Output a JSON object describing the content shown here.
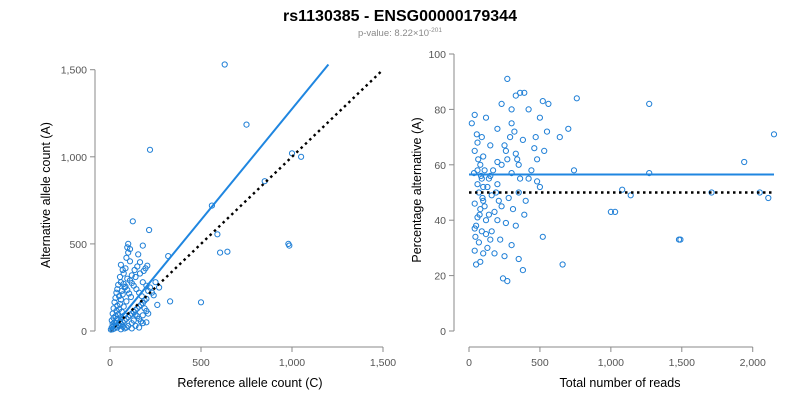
{
  "figure": {
    "title": "rs1130385 - ENSG00000179344",
    "subtitle_prefix": "p-value: 8.22×10",
    "subtitle_exponent": "-201"
  },
  "colors": {
    "points": "#1f7fd6",
    "fit_line": "#1f86e0",
    "reference_line": "#000000",
    "axes": "#8a8a8a"
  },
  "chart_data": [
    {
      "type": "scatter",
      "xlabel": "Reference allele count (C)",
      "ylabel": "Alternative allele count (A)",
      "xlim": [
        0,
        1500
      ],
      "ylim": [
        0,
        1550
      ],
      "xticks": [
        0,
        500,
        1000,
        1500
      ],
      "xtick_labels": [
        "0",
        "500",
        "1,000",
        "1,500"
      ],
      "yticks": [
        0,
        500,
        1000,
        1500
      ],
      "ytick_labels": [
        "0",
        "500",
        "1,000",
        "1,500"
      ],
      "grid": false,
      "fit_line": {
        "x": [
          0,
          1200
        ],
        "y": [
          0,
          1530
        ]
      },
      "reference_line": {
        "x": [
          0,
          1500
        ],
        "y": [
          0,
          1500
        ]
      },
      "points": [
        [
          630,
          1530
        ],
        [
          220,
          1040
        ],
        [
          750,
          1185
        ],
        [
          1000,
          1020
        ],
        [
          1050,
          1000
        ],
        [
          560,
          720
        ],
        [
          590,
          555
        ],
        [
          605,
          450
        ],
        [
          645,
          455
        ],
        [
          850,
          860
        ],
        [
          980,
          500
        ],
        [
          985,
          490
        ],
        [
          500,
          165
        ],
        [
          330,
          170
        ],
        [
          320,
          430
        ],
        [
          215,
          580
        ],
        [
          155,
          440
        ],
        [
          180,
          490
        ],
        [
          125,
          630
        ],
        [
          95,
          480
        ],
        [
          100,
          450
        ],
        [
          90,
          420
        ],
        [
          110,
          400
        ],
        [
          60,
          380
        ],
        [
          85,
          360
        ],
        [
          70,
          350
        ],
        [
          75,
          330
        ],
        [
          55,
          310
        ],
        [
          95,
          300
        ],
        [
          60,
          280
        ],
        [
          45,
          265
        ],
        [
          80,
          250
        ],
        [
          40,
          240
        ],
        [
          65,
          230
        ],
        [
          35,
          220
        ],
        [
          70,
          210
        ],
        [
          50,
          200
        ],
        [
          30,
          190
        ],
        [
          60,
          180
        ],
        [
          90,
          170
        ],
        [
          25,
          165
        ],
        [
          55,
          155
        ],
        [
          40,
          145
        ],
        [
          75,
          140
        ],
        [
          20,
          130
        ],
        [
          50,
          125
        ],
        [
          35,
          115
        ],
        [
          65,
          110
        ],
        [
          15,
          100
        ],
        [
          45,
          95
        ],
        [
          80,
          90
        ],
        [
          30,
          85
        ],
        [
          60,
          80
        ],
        [
          20,
          75
        ],
        [
          40,
          70
        ],
        [
          10,
          60
        ],
        [
          55,
          55
        ],
        [
          25,
          50
        ],
        [
          35,
          45
        ],
        [
          15,
          40
        ],
        [
          45,
          35
        ],
        [
          20,
          30
        ],
        [
          30,
          25
        ],
        [
          10,
          20
        ],
        [
          25,
          15
        ],
        [
          15,
          10
        ],
        [
          5,
          8
        ],
        [
          40,
          20
        ],
        [
          50,
          30
        ],
        [
          60,
          40
        ],
        [
          70,
          50
        ],
        [
          80,
          60
        ],
        [
          90,
          70
        ],
        [
          100,
          80
        ],
        [
          110,
          90
        ],
        [
          120,
          100
        ],
        [
          130,
          110
        ],
        [
          140,
          120
        ],
        [
          150,
          130
        ],
        [
          160,
          140
        ],
        [
          170,
          150
        ],
        [
          180,
          160
        ],
        [
          190,
          175
        ],
        [
          200,
          185
        ],
        [
          175,
          200
        ],
        [
          160,
          220
        ],
        [
          145,
          240
        ],
        [
          130,
          260
        ],
        [
          120,
          275
        ],
        [
          110,
          290
        ],
        [
          140,
          310
        ],
        [
          165,
          330
        ],
        [
          185,
          345
        ],
        [
          195,
          360
        ],
        [
          205,
          375
        ],
        [
          180,
          280
        ],
        [
          200,
          260
        ],
        [
          220,
          250
        ],
        [
          210,
          230
        ],
        [
          230,
          220
        ],
        [
          240,
          205
        ],
        [
          190,
          130
        ],
        [
          200,
          115
        ],
        [
          210,
          100
        ],
        [
          150,
          85
        ],
        [
          160,
          70
        ],
        [
          170,
          55
        ],
        [
          180,
          45
        ],
        [
          130,
          60
        ],
        [
          120,
          45
        ],
        [
          100,
          30
        ],
        [
          90,
          20
        ],
        [
          80,
          15
        ],
        [
          70,
          25
        ],
        [
          60,
          10
        ],
        [
          140,
          95
        ],
        [
          250,
          280
        ],
        [
          260,
          150
        ],
        [
          270,
          250
        ],
        [
          115,
          195
        ],
        [
          105,
          215
        ],
        [
          95,
          235
        ],
        [
          85,
          255
        ],
        [
          75,
          270
        ],
        [
          120,
          320
        ],
        [
          135,
          350
        ],
        [
          150,
          370
        ],
        [
          165,
          395
        ],
        [
          110,
          470
        ],
        [
          100,
          500
        ],
        [
          200,
          50
        ],
        [
          160,
          20
        ],
        [
          140,
          30
        ],
        [
          120,
          15
        ],
        [
          180,
          90
        ]
      ]
    },
    {
      "type": "scatter",
      "xlabel": "Total number of reads",
      "ylabel": "Percentage alternative (A)",
      "xlim": [
        0,
        2150
      ],
      "ylim": [
        0,
        100
      ],
      "xticks": [
        0,
        500,
        1000,
        1500,
        2000
      ],
      "xtick_labels": [
        "0",
        "500",
        "1,000",
        "1,500",
        "2,000"
      ],
      "yticks": [
        0,
        20,
        40,
        60,
        80,
        100
      ],
      "ytick_labels": [
        "0",
        "20",
        "40",
        "60",
        "80",
        "100"
      ],
      "grid": false,
      "fit_line": {
        "x": [
          0,
          2150
        ],
        "y": [
          56.5,
          56.5
        ]
      },
      "reference_line": {
        "x": [
          0,
          2150
        ],
        "y": [
          50,
          50
        ]
      },
      "points": [
        [
          270,
          91
        ],
        [
          360,
          86
        ],
        [
          390,
          86
        ],
        [
          330,
          85
        ],
        [
          760,
          84
        ],
        [
          520,
          83
        ],
        [
          1270,
          82
        ],
        [
          560,
          82
        ],
        [
          230,
          82
        ],
        [
          420,
          80
        ],
        [
          300,
          80
        ],
        [
          40,
          78
        ],
        [
          120,
          77
        ],
        [
          500,
          77
        ],
        [
          20,
          75
        ],
        [
          300,
          75
        ],
        [
          700,
          73
        ],
        [
          200,
          73
        ],
        [
          550,
          72
        ],
        [
          2150,
          71
        ],
        [
          470,
          70
        ],
        [
          90,
          70
        ],
        [
          640,
          70
        ],
        [
          380,
          69
        ],
        [
          60,
          68
        ],
        [
          250,
          67
        ],
        [
          150,
          67
        ],
        [
          530,
          65
        ],
        [
          40,
          65
        ],
        [
          330,
          64
        ],
        [
          100,
          63
        ],
        [
          270,
          62
        ],
        [
          480,
          62
        ],
        [
          1940,
          61
        ],
        [
          200,
          61
        ],
        [
          80,
          60
        ],
        [
          350,
          60
        ],
        [
          60,
          58
        ],
        [
          740,
          58
        ],
        [
          110,
          58
        ],
        [
          1270,
          57
        ],
        [
          300,
          57
        ],
        [
          150,
          56
        ],
        [
          420,
          55
        ],
        [
          90,
          55
        ],
        [
          480,
          54
        ],
        [
          200,
          53
        ],
        [
          130,
          52
        ],
        [
          500,
          52
        ],
        [
          1080,
          51
        ],
        [
          70,
          50
        ],
        [
          350,
          50
        ],
        [
          1710,
          50
        ],
        [
          2050,
          50
        ],
        [
          2110,
          48
        ],
        [
          160,
          49
        ],
        [
          280,
          48
        ],
        [
          100,
          47
        ],
        [
          1140,
          49
        ],
        [
          40,
          46
        ],
        [
          230,
          45
        ],
        [
          310,
          44
        ],
        [
          80,
          44
        ],
        [
          180,
          43
        ],
        [
          1000,
          43
        ],
        [
          1030,
          43
        ],
        [
          390,
          42
        ],
        [
          140,
          42
        ],
        [
          60,
          41
        ],
        [
          200,
          40
        ],
        [
          120,
          40
        ],
        [
          260,
          39
        ],
        [
          330,
          38
        ],
        [
          40,
          37
        ],
        [
          90,
          36
        ],
        [
          160,
          36
        ],
        [
          520,
          34
        ],
        [
          220,
          33
        ],
        [
          1480,
          33
        ],
        [
          1490,
          33
        ],
        [
          70,
          32
        ],
        [
          300,
          31
        ],
        [
          130,
          30
        ],
        [
          40,
          29
        ],
        [
          180,
          28
        ],
        [
          250,
          27
        ],
        [
          350,
          26
        ],
        [
          80,
          25
        ],
        [
          660,
          24
        ],
        [
          50,
          24
        ],
        [
          380,
          22
        ],
        [
          240,
          19
        ],
        [
          270,
          18
        ],
        [
          100,
          52
        ],
        [
          140,
          55
        ],
        [
          170,
          58
        ],
        [
          190,
          50
        ],
        [
          210,
          47
        ],
        [
          60,
          53
        ],
        [
          110,
          45
        ],
        [
          50,
          38
        ],
        [
          150,
          33
        ],
        [
          230,
          60
        ],
        [
          260,
          65
        ],
        [
          290,
          70
        ],
        [
          320,
          72
        ],
        [
          340,
          62
        ],
        [
          360,
          55
        ],
        [
          400,
          47
        ],
        [
          440,
          58
        ],
        [
          460,
          66
        ],
        [
          120,
          35
        ],
        [
          100,
          28
        ],
        [
          75,
          42
        ],
        [
          95,
          48
        ],
        [
          85,
          56
        ],
        [
          65,
          62
        ],
        [
          55,
          71
        ],
        [
          45,
          34
        ],
        [
          35,
          57
        ]
      ]
    }
  ]
}
